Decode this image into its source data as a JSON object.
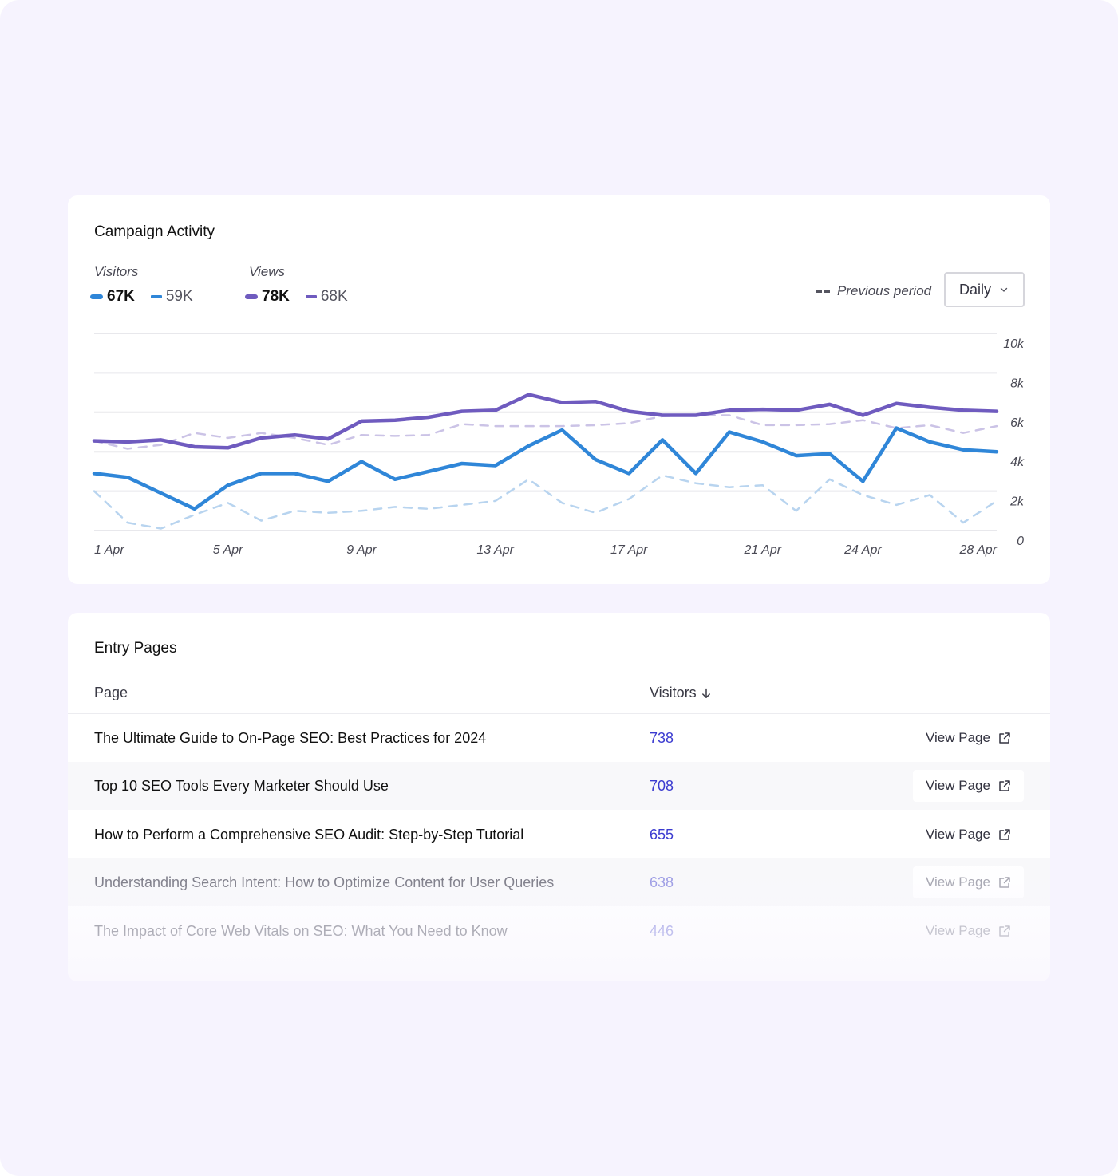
{
  "campaign": {
    "title": "Campaign Activity",
    "legend": {
      "visitors": {
        "heading": "Visitors",
        "current": "67K",
        "previous": "59K"
      },
      "views": {
        "heading": "Views",
        "current": "78K",
        "previous": "68K"
      }
    },
    "previous_period_label": "Previous period",
    "interval": {
      "selected": "Daily"
    }
  },
  "colors": {
    "visitors": "#2f86d8",
    "visitors_prev": "#b8d4ef",
    "views": "#6f5bbf",
    "views_prev": "#cbc3e6",
    "grid": "#e8e8ec"
  },
  "chart_data": {
    "type": "line",
    "x": [
      "1 Apr",
      "2 Apr",
      "3 Apr",
      "4 Apr",
      "5 Apr",
      "6 Apr",
      "7 Apr",
      "8 Apr",
      "9 Apr",
      "10 Apr",
      "11 Apr",
      "12 Apr",
      "13 Apr",
      "14 Apr",
      "15 Apr",
      "16 Apr",
      "17 Apr",
      "18 Apr",
      "19 Apr",
      "20 Apr",
      "21 Apr",
      "22 Apr",
      "23 Apr",
      "24 Apr",
      "25 Apr",
      "26 Apr",
      "27 Apr",
      "28 Apr"
    ],
    "x_tick_labels": [
      "1 Apr",
      "5 Apr",
      "9 Apr",
      "13 Apr",
      "17 Apr",
      "21 Apr",
      "24 Apr",
      "28 Apr"
    ],
    "y_tick_labels": [
      "10k",
      "8k",
      "6k",
      "4k",
      "2k",
      "0"
    ],
    "ylim": [
      0,
      10000
    ],
    "grid": true,
    "y_axis_side": "right",
    "series": [
      {
        "name": "Visitors",
        "style": "solid",
        "colorKey": "visitors",
        "values": [
          2900,
          2700,
          1900,
          1100,
          2300,
          2900,
          2900,
          2500,
          3500,
          2600,
          3000,
          3400,
          3300,
          4300,
          5100,
          3600,
          2900,
          4600,
          2900,
          5000,
          4500,
          3800,
          3900,
          2500,
          5200,
          4500,
          4100,
          4000
        ]
      },
      {
        "name": "Visitors",
        "style": "dashed",
        "colorKey": "visitors_prev",
        "values": [
          2000,
          400,
          100,
          800,
          1400,
          500,
          1000,
          900,
          1000,
          1200,
          1100,
          1300,
          1500,
          2600,
          1400,
          900,
          1600,
          2800,
          2400,
          2200,
          2300,
          1000,
          2600,
          1800,
          1300,
          1800,
          400,
          1500
        ]
      },
      {
        "name": "Views",
        "style": "solid",
        "colorKey": "views",
        "values": [
          4550,
          4500,
          4600,
          4250,
          4200,
          4700,
          4850,
          4650,
          5550,
          5600,
          5750,
          6050,
          6100,
          6900,
          6500,
          6550,
          6050,
          5850,
          5850,
          6100,
          6150,
          6100,
          6400,
          5850,
          6450,
          6250,
          6100,
          6050
        ]
      },
      {
        "name": "Views",
        "style": "dashed",
        "colorKey": "views_prev",
        "values": [
          4550,
          4150,
          4350,
          4950,
          4700,
          4950,
          4700,
          4350,
          4850,
          4800,
          4850,
          5400,
          5300,
          5300,
          5300,
          5350,
          5450,
          5800,
          5850,
          5850,
          5350,
          5350,
          5400,
          5600,
          5200,
          5350,
          4950,
          5300
        ]
      }
    ]
  },
  "entry_pages": {
    "title": "Entry Pages",
    "columns": {
      "page": "Page",
      "visitors": "Visitors"
    },
    "action_label": "View Page",
    "rows": [
      {
        "page": "The Ultimate Guide to On-Page SEO: Best Practices for 2024",
        "visitors": "738"
      },
      {
        "page": "Top 10 SEO Tools Every Marketer Should Use",
        "visitors": "708"
      },
      {
        "page": "How to Perform a Comprehensive SEO Audit: Step-by-Step Tutorial",
        "visitors": "655"
      },
      {
        "page": "Understanding Search Intent: How to Optimize Content for User Queries",
        "visitors": "638"
      },
      {
        "page": "The Impact of Core Web Vitals on SEO: What You Need to Know",
        "visitors": "446"
      }
    ]
  }
}
